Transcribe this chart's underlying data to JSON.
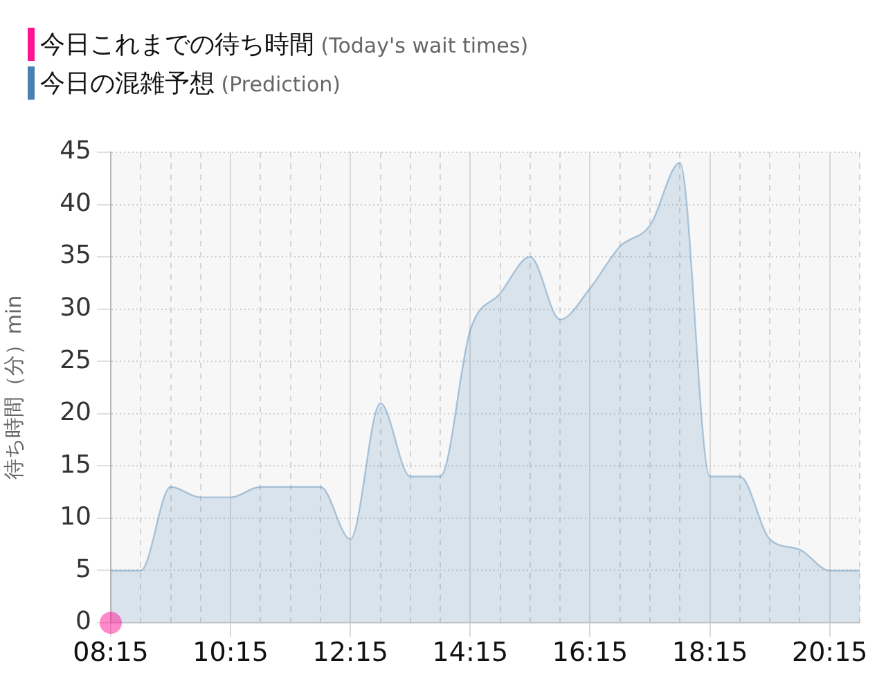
{
  "chart_data": {
    "type": "area",
    "ylabel": "待ち時間（分）min",
    "legend": "top left",
    "grid": true,
    "x": [
      8.25,
      8.75,
      9.25,
      9.75,
      10.25,
      10.75,
      11.25,
      11.75,
      12.25,
      12.75,
      13.25,
      13.75,
      14.25,
      14.75,
      15.25,
      15.75,
      16.25,
      16.75,
      17.25,
      17.75,
      18.25,
      18.75,
      19.25,
      19.75,
      20.25,
      20.75
    ],
    "series": [
      {
        "name": "今日これまでの待ち時間 (Today's wait times)",
        "type": "scatter",
        "marker": "circle",
        "color": "#ff1493",
        "x": [
          8.25
        ],
        "values": [
          0
        ]
      },
      {
        "name": "今日の混雑予想 (Prediction)",
        "color": "#4682b4",
        "values": [
          5,
          5,
          13,
          12,
          12,
          13,
          13,
          13,
          8,
          21,
          14,
          14,
          28,
          31.5,
          35,
          29,
          32,
          36,
          38,
          44,
          14,
          14,
          8,
          7,
          5,
          5
        ]
      }
    ],
    "xlim": [
      8.25,
      20.75
    ],
    "xticks": [
      {
        "value": 8.25,
        "label": "08:15"
      },
      {
        "value": 8.75,
        "label": null
      },
      {
        "value": 9.25,
        "label": null
      },
      {
        "value": 9.75,
        "label": null
      },
      {
        "value": 10.25,
        "label": "10:15"
      },
      {
        "value": 10.75,
        "label": null
      },
      {
        "value": 11.25,
        "label": null
      },
      {
        "value": 11.75,
        "label": null
      },
      {
        "value": 12.25,
        "label": "12:15"
      },
      {
        "value": 12.75,
        "label": null
      },
      {
        "value": 13.25,
        "label": null
      },
      {
        "value": 13.75,
        "label": null
      },
      {
        "value": 14.25,
        "label": "14:15"
      },
      {
        "value": 14.75,
        "label": null
      },
      {
        "value": 15.25,
        "label": null
      },
      {
        "value": 15.75,
        "label": null
      },
      {
        "value": 16.25,
        "label": "16:15"
      },
      {
        "value": 16.75,
        "label": null
      },
      {
        "value": 17.25,
        "label": null
      },
      {
        "value": 17.75,
        "label": null
      },
      {
        "value": 18.25,
        "label": "18:15"
      },
      {
        "value": 18.75,
        "label": null
      },
      {
        "value": 19.25,
        "label": null
      },
      {
        "value": 19.75,
        "label": null
      },
      {
        "value": 20.25,
        "label": "20:15"
      },
      {
        "value": 20.75,
        "label": null
      }
    ],
    "ylim": [
      0,
      45
    ],
    "yticks": [
      0,
      5,
      10,
      15,
      20,
      25,
      30,
      35,
      40,
      45
    ]
  }
}
